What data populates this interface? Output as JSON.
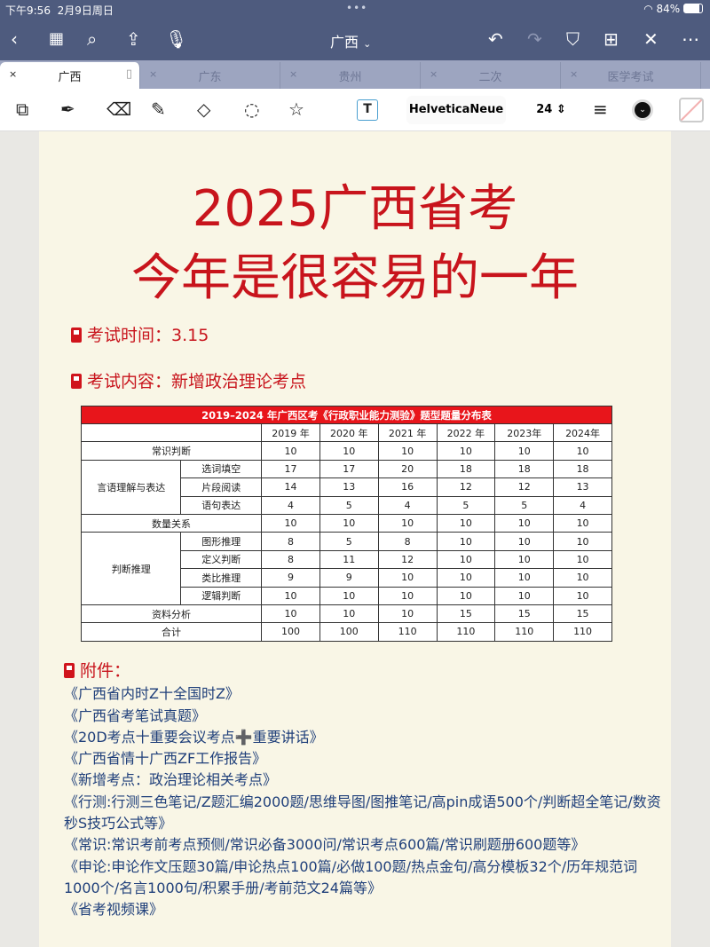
{
  "status": {
    "time": "下午9:56",
    "date": "2月9日周日",
    "battery": "84%"
  },
  "nav": {
    "title": "广西",
    "chevron": "⌄"
  },
  "tabs": [
    {
      "label": "广西",
      "active": true
    },
    {
      "label": "广东"
    },
    {
      "label": "贵州"
    },
    {
      "label": "二次"
    },
    {
      "label": "医学考试"
    }
  ],
  "toolbar": {
    "font": "HelveticaNeue",
    "size": "24",
    "color": "#111111"
  },
  "page": {
    "title1": "2025广西省考",
    "title2": "今年是很容易的一年",
    "exam_time": "考试时间：3.15",
    "exam_content": "考试内容：新增政治理论考点",
    "table": {
      "title": "2019–2024 年广西区考《行政职业能力测验》题型题量分布表",
      "years": [
        "2019 年",
        "2020 年",
        "2021 年",
        "2022 年",
        "2023年",
        "2024年"
      ],
      "rows": [
        {
          "group": "常识判断",
          "sub": "",
          "values": [
            "10",
            "10",
            "10",
            "10",
            "10",
            "10"
          ]
        },
        {
          "group": "言语理解与表达",
          "sub": "选词填空",
          "values": [
            "17",
            "17",
            "20",
            "18",
            "18",
            "18"
          ]
        },
        {
          "group": "言语理解与表达",
          "sub": "片段阅读",
          "values": [
            "14",
            "13",
            "16",
            "12",
            "12",
            "13"
          ]
        },
        {
          "group": "言语理解与表达",
          "sub": "语句表达",
          "values": [
            "4",
            "5",
            "4",
            "5",
            "5",
            "4"
          ]
        },
        {
          "group": "数量关系",
          "sub": "",
          "values": [
            "10",
            "10",
            "10",
            "10",
            "10",
            "10"
          ]
        },
        {
          "group": "判断推理",
          "sub": "图形推理",
          "values": [
            "8",
            "5",
            "8",
            "10",
            "10",
            "10"
          ]
        },
        {
          "group": "判断推理",
          "sub": "定义判断",
          "values": [
            "8",
            "11",
            "12",
            "10",
            "10",
            "10"
          ]
        },
        {
          "group": "判断推理",
          "sub": "类比推理",
          "values": [
            "9",
            "9",
            "10",
            "10",
            "10",
            "10"
          ]
        },
        {
          "group": "判断推理",
          "sub": "逻辑判断",
          "values": [
            "10",
            "10",
            "10",
            "10",
            "10",
            "10"
          ]
        },
        {
          "group": "资料分析",
          "sub": "",
          "values": [
            "10",
            "10",
            "10",
            "15",
            "15",
            "15"
          ]
        },
        {
          "group": "合计",
          "sub": "",
          "values": [
            "100",
            "100",
            "110",
            "110",
            "110",
            "110"
          ]
        }
      ]
    },
    "attachments_label": "附件：",
    "attachments": [
      "《广西省内时Z十全国时Z》",
      "《广西省考笔试真题》",
      "《20D考点十重要会议考点➕重要讲话》",
      "《广西省情十广西ZF工作报告》",
      "《新增考点：政治理论相关考点》",
      "《行测:行测三色笔记/Z题汇编2000题/思维导图/图推笔记/高pin成语500个/判断超全笔记/数资秒S技巧公式等》",
      "《常识:常识考前考点预侧/常识必备3000问/常识考点600篇/常识刷题册600题等》",
      "《申论:申论作文压题30篇/申论热点100篇/必做100题/热点金句/高分模板32个/历年规范词1000个/名言1000句/积累手册/考前范文24篇等》",
      "《省考视频课》"
    ]
  }
}
